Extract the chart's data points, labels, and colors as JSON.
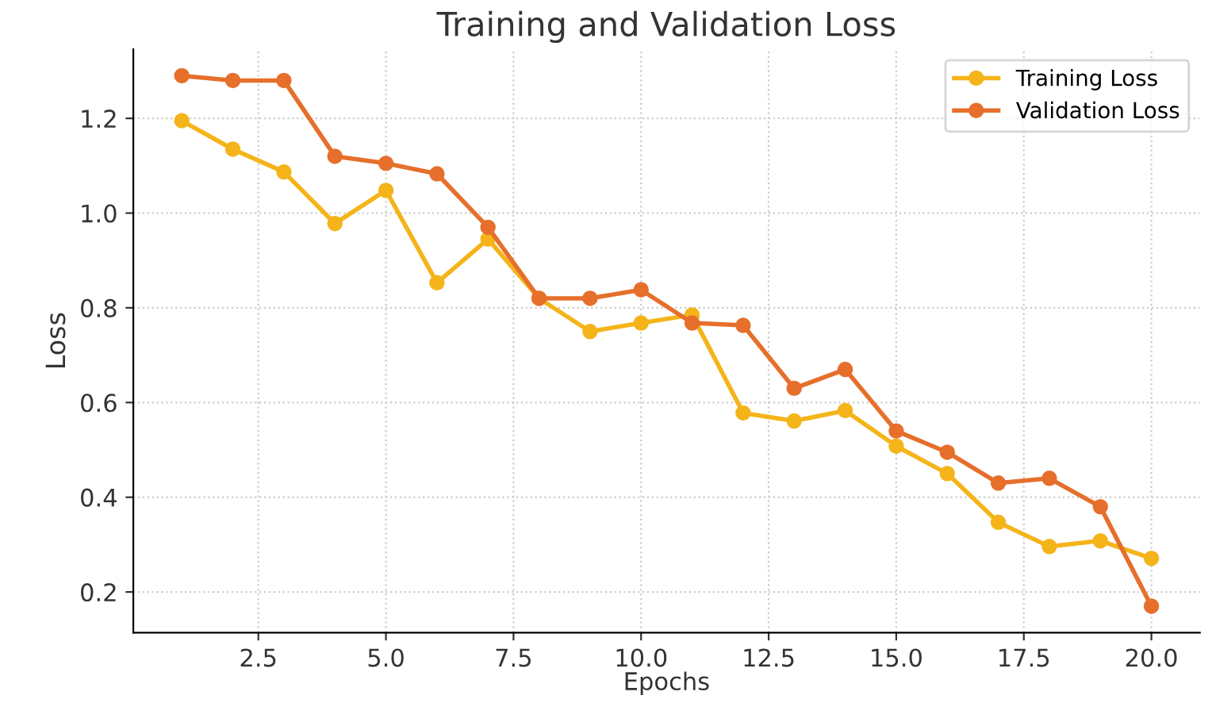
{
  "chart_data": {
    "type": "line",
    "title": "Training and Validation Loss",
    "xlabel": "Epochs",
    "ylabel": "Loss",
    "x": [
      1,
      2,
      3,
      4,
      5,
      6,
      7,
      8,
      9,
      10,
      11,
      12,
      13,
      14,
      15,
      16,
      17,
      18,
      19,
      20
    ],
    "series": [
      {
        "name": "Training Loss",
        "color": "#f4b41a",
        "values": [
          1.195,
          1.135,
          1.087,
          0.978,
          1.048,
          0.853,
          0.945,
          0.82,
          0.75,
          0.768,
          0.785,
          0.578,
          0.561,
          0.583,
          0.508,
          0.45,
          0.347,
          0.296,
          0.308,
          0.271
        ]
      },
      {
        "name": "Validation Loss",
        "color": "#e66f2c",
        "values": [
          1.29,
          1.28,
          1.28,
          1.12,
          1.105,
          1.083,
          0.97,
          0.82,
          0.82,
          0.838,
          0.768,
          0.763,
          0.63,
          0.67,
          0.54,
          0.495,
          0.43,
          0.44,
          0.38,
          0.17
        ]
      }
    ],
    "xlim": [
      0.05,
      20.95
    ],
    "ylim": [
      0.114,
      1.346
    ],
    "xticks": [
      {
        "value": 2.5,
        "label": "2.5"
      },
      {
        "value": 5,
        "label": "5.0"
      },
      {
        "value": 7.5,
        "label": "7.5"
      },
      {
        "value": 10,
        "label": "10.0"
      },
      {
        "value": 12.5,
        "label": "12.5"
      },
      {
        "value": 15,
        "label": "15.0"
      },
      {
        "value": 17.5,
        "label": "17.5"
      },
      {
        "value": 20,
        "label": "20.0"
      }
    ],
    "yticks": [
      0.2,
      0.4,
      0.6,
      0.8,
      {
        "value": 1.0,
        "label": "1.0"
      },
      1.2
    ],
    "grid": true,
    "legend": "top right",
    "marker": "circle",
    "line_style": "solid"
  }
}
